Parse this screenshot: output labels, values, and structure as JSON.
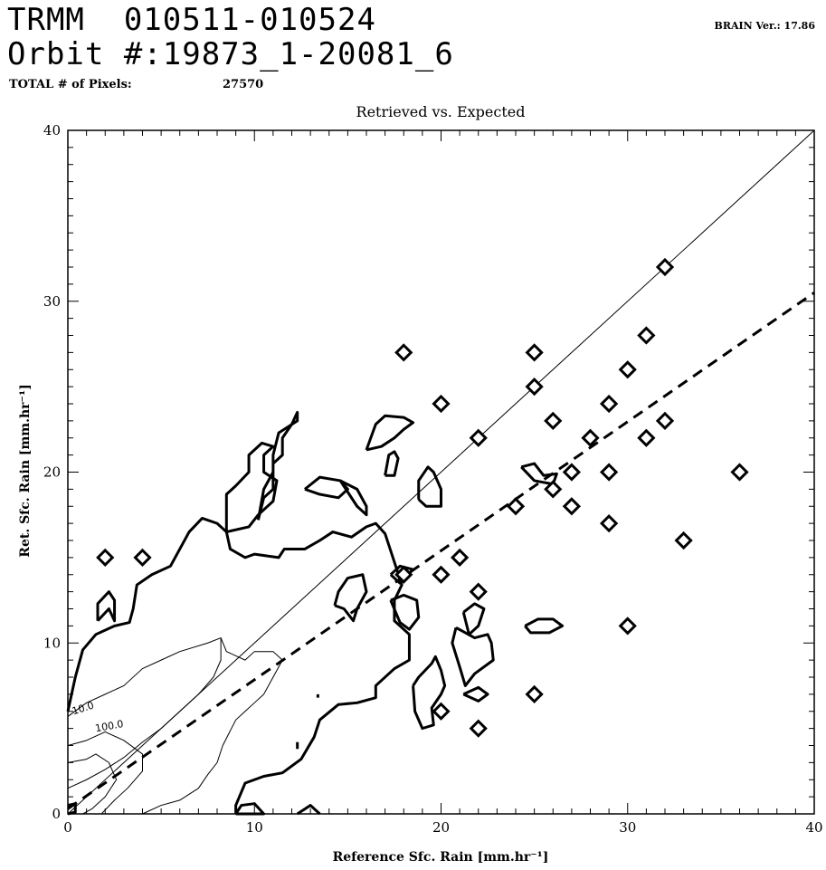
{
  "header": {
    "line1": "TRMM  010511-010524",
    "line2": "Orbit #:19873_1-20081_6",
    "pixels_label": "TOTAL # of Pixels:",
    "pixels_value": "27570",
    "version": "BRAIN Ver.: 17.86"
  },
  "chart_data": {
    "type": "scatter",
    "title": "Retrieved vs. Expected",
    "xlabel": "Reference Sfc. Rain [mm.hr⁻¹]",
    "ylabel": "Ret. Sfc. Rain [mm.hr⁻¹]",
    "xlim": [
      0,
      40
    ],
    "ylim": [
      0,
      40
    ],
    "xticks": [
      "0",
      "10",
      "20",
      "30",
      "40"
    ],
    "yticks": [
      "0",
      "10",
      "20",
      "30",
      "40"
    ],
    "grid": false,
    "reference_line": {
      "slope": 1,
      "intercept": 0,
      "style": "solid"
    },
    "fit_line": {
      "slope": 0.755,
      "intercept": 0.3,
      "style": "dashed"
    },
    "contour_labels": [
      "10.0",
      "100.0"
    ],
    "points": [
      {
        "x": 2,
        "y": 15
      },
      {
        "x": 4,
        "y": 15
      },
      {
        "x": 18,
        "y": 27
      },
      {
        "x": 20,
        "y": 24
      },
      {
        "x": 22,
        "y": 22
      },
      {
        "x": 25,
        "y": 27
      },
      {
        "x": 25,
        "y": 25
      },
      {
        "x": 26,
        "y": 23
      },
      {
        "x": 32,
        "y": 32
      },
      {
        "x": 31,
        "y": 28
      },
      {
        "x": 30,
        "y": 26
      },
      {
        "x": 29,
        "y": 24
      },
      {
        "x": 32,
        "y": 23
      },
      {
        "x": 28,
        "y": 22
      },
      {
        "x": 31,
        "y": 22
      },
      {
        "x": 27,
        "y": 20
      },
      {
        "x": 29,
        "y": 20
      },
      {
        "x": 26,
        "y": 19
      },
      {
        "x": 24,
        "y": 18
      },
      {
        "x": 27,
        "y": 18
      },
      {
        "x": 29,
        "y": 17
      },
      {
        "x": 33,
        "y": 16
      },
      {
        "x": 36,
        "y": 20
      },
      {
        "x": 21,
        "y": 15
      },
      {
        "x": 20,
        "y": 14
      },
      {
        "x": 22,
        "y": 13
      },
      {
        "x": 30,
        "y": 11
      },
      {
        "x": 25,
        "y": 7
      },
      {
        "x": 20,
        "y": 6
      },
      {
        "x": 22,
        "y": 5
      },
      {
        "x": 18,
        "y": 14
      }
    ]
  }
}
